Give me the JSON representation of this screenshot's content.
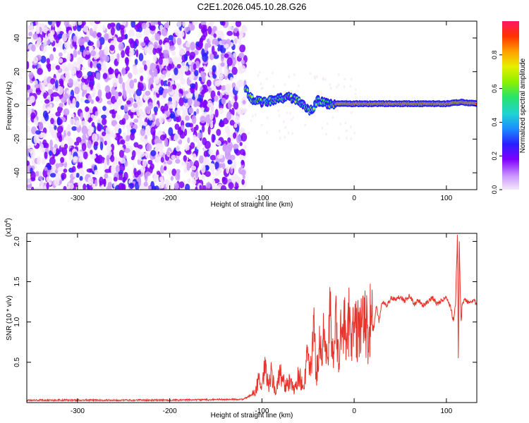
{
  "page_title": "C2E1.2026.045.10.28.G26",
  "colors": {
    "snr_line": "#e8332a",
    "colormap": [
      "#f4e8f8",
      "#cc99ff",
      "#7f00ff",
      "#2a1fff",
      "#1a8cff",
      "#1fd3d3",
      "#29e36a",
      "#8cf000",
      "#e6ef00",
      "#ffa000",
      "#ff3300",
      "#ff1464"
    ]
  },
  "chart_data": [
    {
      "type": "heatmap",
      "title": "C2E1.2026.045.10.28.G26",
      "xlabel": "Height of straight line (km)",
      "ylabel": "Frequency (Hz)",
      "xlim": [
        -355,
        133
      ],
      "ylim": [
        -50,
        50
      ],
      "xticks": [
        -300,
        -200,
        -100,
        0,
        100
      ],
      "xtick_labels": [
        "-300",
        "-200",
        "-100",
        "0",
        "100"
      ],
      "yticks": [
        -40,
        -20,
        0,
        20,
        40
      ],
      "ytick_labels": [
        "-40",
        "-20",
        "0",
        "20",
        "40"
      ],
      "colorbar": {
        "label": "Normalized spectral amplitude",
        "range": [
          0,
          1
        ],
        "ticks": [
          0.0,
          0.2,
          0.4,
          0.6,
          0.8
        ],
        "tick_labels": [
          "0.0",
          "0.2",
          "0.4",
          "0.6",
          "0.8"
        ]
      },
      "noise_region": {
        "x_range": [
          -355,
          -118
        ],
        "freq_range": [
          -50,
          50
        ]
      },
      "signal_track": [
        {
          "x": -118,
          "freq": 10
        },
        {
          "x": -110,
          "freq": 3
        },
        {
          "x": -100,
          "freq": 2
        },
        {
          "x": -90,
          "freq": 3
        },
        {
          "x": -80,
          "freq": 4
        },
        {
          "x": -70,
          "freq": 5
        },
        {
          "x": -60,
          "freq": 3
        },
        {
          "x": -50,
          "freq": -3
        },
        {
          "x": -45,
          "freq": -2
        },
        {
          "x": -40,
          "freq": 3
        },
        {
          "x": -30,
          "freq": 1
        },
        {
          "x": -20,
          "freq": 1
        },
        {
          "x": 0,
          "freq": 1
        },
        {
          "x": 20,
          "freq": 1
        },
        {
          "x": 50,
          "freq": 1
        },
        {
          "x": 80,
          "freq": 1
        },
        {
          "x": 100,
          "freq": 1
        },
        {
          "x": 115,
          "freq": 2
        },
        {
          "x": 133,
          "freq": 1
        }
      ]
    },
    {
      "type": "line",
      "xlabel": "Height of straight line (km)",
      "ylabel": "SNR (10 * v/v)",
      "y_multiplier_label": "(x10",
      "y_multiplier_exp": "4",
      "xlim": [
        -355,
        133
      ],
      "ylim": [
        0,
        2.1
      ],
      "xticks": [
        -300,
        -200,
        -100,
        0,
        100
      ],
      "xtick_labels": [
        "-300",
        "-200",
        "-100",
        "0",
        "100"
      ],
      "yticks": [
        0.5,
        1.0,
        1.5,
        2.0
      ],
      "ytick_labels": [
        "0.5",
        "1.0",
        "1.5",
        "2.0"
      ],
      "series": [
        {
          "x": [
            -355,
            -300,
            -200,
            -120,
            -108,
            -103,
            -100,
            -97,
            -93,
            -90,
            -85,
            -80,
            -75,
            -70,
            -65,
            -60,
            -55,
            -50,
            -47,
            -44,
            -41,
            -38,
            -35,
            -32,
            -29,
            -26,
            -23,
            -20,
            -17,
            -14,
            -11,
            -8,
            -5,
            -2,
            0,
            3,
            6,
            9,
            12,
            15,
            18,
            21,
            24,
            27,
            30,
            35,
            40,
            45,
            50,
            55,
            60,
            65,
            70,
            75,
            80,
            85,
            90,
            95,
            100,
            104,
            108,
            110,
            112,
            113,
            114,
            115,
            116,
            117,
            118,
            120,
            125,
            130,
            133
          ],
          "y": [
            0.03,
            0.03,
            0.03,
            0.04,
            0.12,
            0.3,
            0.15,
            0.45,
            0.2,
            0.35,
            0.12,
            0.4,
            0.2,
            0.25,
            0.15,
            0.35,
            0.18,
            0.6,
            0.4,
            0.95,
            0.3,
            0.8,
            0.5,
            1.05,
            0.4,
            1.1,
            0.7,
            1.0,
            0.5,
            0.9,
            1.1,
            0.6,
            1.2,
            0.8,
            0.95,
            0.85,
            1.0,
            0.9,
            1.05,
            0.8,
            1.1,
            0.9,
            1.2,
            1.0,
            1.25,
            1.2,
            1.3,
            1.28,
            1.32,
            1.26,
            1.33,
            1.22,
            1.27,
            1.2,
            1.25,
            1.3,
            1.22,
            1.27,
            1.3,
            1.2,
            1.0,
            1.25,
            2.1,
            0.47,
            2.0,
            1.4,
            1.0,
            1.2,
            1.25,
            1.27,
            1.25,
            1.28,
            1.2
          ],
          "noise_amplitude": 0.02
        }
      ]
    }
  ]
}
